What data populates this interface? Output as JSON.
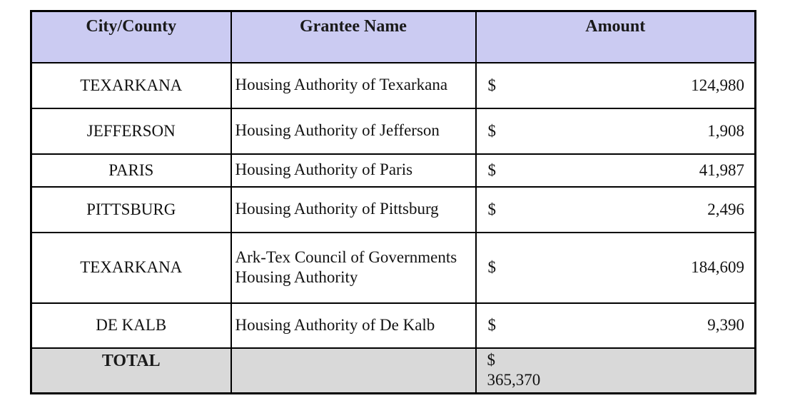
{
  "table": {
    "columns": [
      {
        "label": "City/County"
      },
      {
        "label": "Grantee Name"
      },
      {
        "label": "Amount"
      }
    ],
    "rows": [
      {
        "city": "TEXARKANA",
        "grantee": "Housing Authority of Texarkana",
        "currency": "$",
        "amount": "124,980"
      },
      {
        "city": "JEFFERSON",
        "grantee": "Housing Authority of Jefferson",
        "currency": "$",
        "amount": "1,908"
      },
      {
        "city": "PARIS",
        "grantee": "Housing Authority of Paris",
        "currency": "$",
        "amount": "41,987"
      },
      {
        "city": "PITTSBURG",
        "grantee": "Housing Authority of Pittsburg",
        "currency": "$",
        "amount": "2,496"
      },
      {
        "city": "TEXARKANA",
        "grantee": "Ark-Tex Council of Governments Housing Authority",
        "currency": "$",
        "amount": "184,609"
      },
      {
        "city": "DE KALB",
        "grantee": "Housing Authority of De Kalb",
        "currency": "$",
        "amount": "9,390"
      }
    ],
    "total": {
      "label": "TOTAL",
      "currency": "$",
      "amount": "365,370"
    }
  },
  "colors": {
    "header_bg": "#cbcbf2",
    "total_bg": "#d9d9d9",
    "border": "#000000"
  }
}
